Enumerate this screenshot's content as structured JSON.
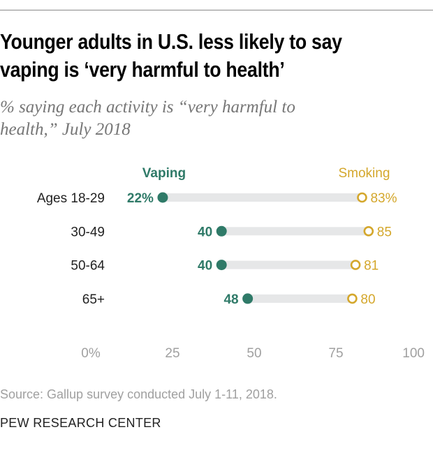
{
  "title_lines": [
    "Younger adults in U.S. less likely to say",
    "vaping is ‘very harmful to health’"
  ],
  "subtitle_lines": [
    "% saying each activity is “very harmful to",
    "health,” July 2018"
  ],
  "source": "Source: Gallup survey conducted July 1-11, 2018.",
  "brand": "PEW RESEARCH CENTER",
  "colors": {
    "vaping": "#2f7a68",
    "smoking": "#d4a72c",
    "bar": "#e6e7e8",
    "axis_text": "#a0a0a0"
  },
  "chart_data": {
    "type": "dot",
    "categories": [
      "Ages 18-29",
      "30-49",
      "50-64",
      "65+"
    ],
    "series": [
      {
        "name": "Vaping",
        "values": [
          22,
          40,
          40,
          48
        ],
        "labels": [
          "22%",
          "40",
          "40",
          "48"
        ],
        "marker": "filled"
      },
      {
        "name": "Smoking",
        "values": [
          83,
          85,
          81,
          80
        ],
        "labels": [
          "83%",
          "85",
          "81",
          "80"
        ],
        "marker": "hollow"
      }
    ],
    "xlim": [
      0,
      100
    ],
    "xticks": [
      0,
      25,
      50,
      75,
      100
    ],
    "xtick_labels": [
      "0%",
      "25",
      "50",
      "75",
      "100"
    ],
    "grid": false,
    "legend": "top, direct labels"
  }
}
